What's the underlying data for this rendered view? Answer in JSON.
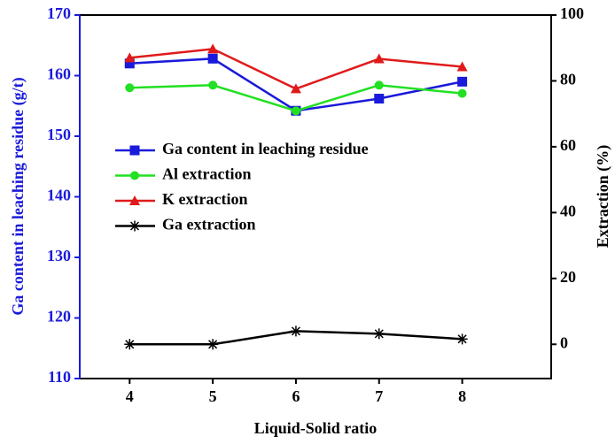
{
  "chart_data": {
    "type": "line",
    "x_label": "Liquid-Solid ratio",
    "y_label": "Ga content in leaching residue (g/t)",
    "y2_label": "Extraction (%)",
    "x": [
      4,
      5,
      6,
      7,
      8
    ],
    "xlim": [
      3.4,
      9.07
    ],
    "xticks": [
      4,
      5,
      6,
      7,
      8
    ],
    "ylim": [
      110,
      170
    ],
    "yticks": [
      110,
      120,
      130,
      140,
      150,
      160,
      170
    ],
    "y2lim": [
      -10.4,
      100
    ],
    "y2ticks": [
      0,
      20,
      40,
      60,
      80,
      100
    ],
    "y_axis_color": "#1a1adb",
    "series": [
      {
        "name": "Ga content in leaching residue",
        "color": "#1a1adb",
        "marker": "square",
        "values": [
          162.0,
          162.8,
          154.2,
          156.2,
          159.0
        ]
      },
      {
        "name": "Al extraction",
        "color": "#22e022",
        "marker": "circle",
        "axis": "y2",
        "values": [
          77.9,
          78.7,
          70.9,
          78.7,
          76.2
        ]
      },
      {
        "name": "K extraction",
        "color": "#e01a1a",
        "marker": "triangle",
        "axis": "y2",
        "values": [
          87.0,
          89.7,
          77.6,
          86.7,
          84.3
        ]
      },
      {
        "name": "Ga extraction",
        "color": "#000000",
        "marker": "asterisk",
        "axis": "y2",
        "values": [
          0,
          0,
          4.0,
          3.2,
          1.6
        ]
      }
    ]
  }
}
